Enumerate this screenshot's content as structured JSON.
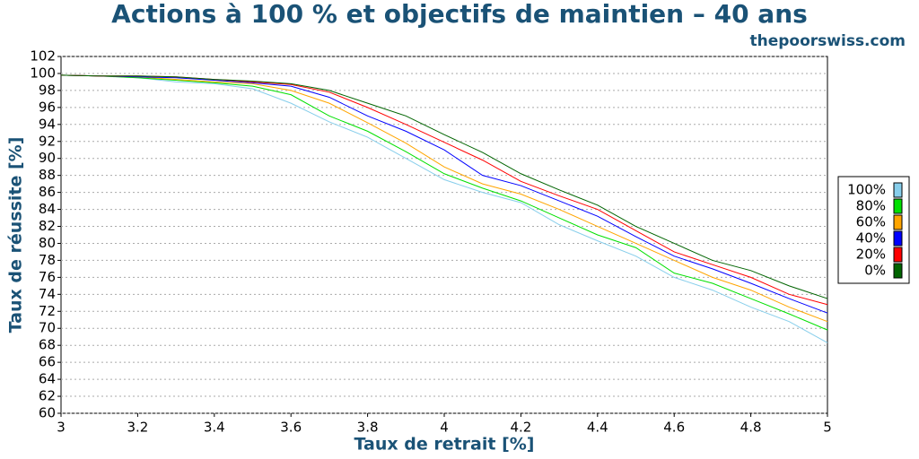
{
  "chart_data": {
    "type": "line",
    "title": "Actions à 100 % et objectifs de maintien – 40 ans",
    "subtitle": "thepoorswiss.com",
    "x_label": "Taux de retrait [%]",
    "y_label": "Taux de réussite [%]",
    "x": [
      3,
      3.1,
      3.2,
      3.3,
      3.4,
      3.5,
      3.6,
      3.7,
      3.8,
      3.9,
      4,
      4.1,
      4.2,
      4.3,
      4.4,
      4.5,
      4.6,
      4.7,
      4.8,
      4.9,
      5
    ],
    "series": [
      {
        "name": "100%",
        "color": "#87ceeb",
        "values": [
          99.8,
          99.7,
          99.5,
          99.0,
          98.8,
          98.2,
          96.5,
          94.3,
          92.5,
          90.0,
          87.5,
          86.0,
          84.8,
          82.2,
          80.3,
          78.5,
          76.0,
          74.5,
          72.5,
          70.8,
          68.3
        ]
      },
      {
        "name": "80%",
        "color": "#00e000",
        "values": [
          99.8,
          99.7,
          99.5,
          99.2,
          98.9,
          98.5,
          97.5,
          95.0,
          93.2,
          90.8,
          88.2,
          86.5,
          85.0,
          83.0,
          81.0,
          79.5,
          76.5,
          75.3,
          73.5,
          71.7,
          69.8
        ]
      },
      {
        "name": "60%",
        "color": "#ffa500",
        "values": [
          99.8,
          99.7,
          99.6,
          99.3,
          99.0,
          98.8,
          98.0,
          96.5,
          94.2,
          91.8,
          89.0,
          87.0,
          85.8,
          84.0,
          82.0,
          80.0,
          78.0,
          76.0,
          74.5,
          72.5,
          70.8
        ]
      },
      {
        "name": "40%",
        "color": "#0000ff",
        "values": [
          99.8,
          99.7,
          99.6,
          99.5,
          99.2,
          98.9,
          98.5,
          97.2,
          95.0,
          93.2,
          91.0,
          88.0,
          86.8,
          85.0,
          83.2,
          80.8,
          78.5,
          77.0,
          75.3,
          73.5,
          71.8
        ]
      },
      {
        "name": "20%",
        "color": "#ff0000",
        "values": [
          99.8,
          99.7,
          99.7,
          99.6,
          99.3,
          99.0,
          98.7,
          97.8,
          96.0,
          94.0,
          91.9,
          89.8,
          87.3,
          85.6,
          84.0,
          81.5,
          79.0,
          77.5,
          76.0,
          74.0,
          72.8
        ]
      },
      {
        "name": "0%",
        "color": "#006400",
        "values": [
          99.8,
          99.7,
          99.7,
          99.6,
          99.3,
          99.1,
          98.8,
          98.0,
          96.5,
          95.0,
          92.8,
          90.7,
          88.2,
          86.3,
          84.5,
          82.0,
          80.0,
          78.0,
          76.8,
          75.0,
          73.5
        ]
      }
    ],
    "xlim": [
      3,
      5
    ],
    "xticks": [
      3,
      3.2,
      3.4,
      3.6,
      3.8,
      4,
      4.2,
      4.4,
      4.6,
      4.8,
      5
    ],
    "ylim": [
      60,
      102
    ],
    "yticks": [
      60,
      62,
      64,
      66,
      68,
      70,
      72,
      74,
      76,
      78,
      80,
      82,
      84,
      86,
      88,
      90,
      92,
      94,
      96,
      98,
      100,
      102
    ],
    "grid": true,
    "legend": "right"
  }
}
